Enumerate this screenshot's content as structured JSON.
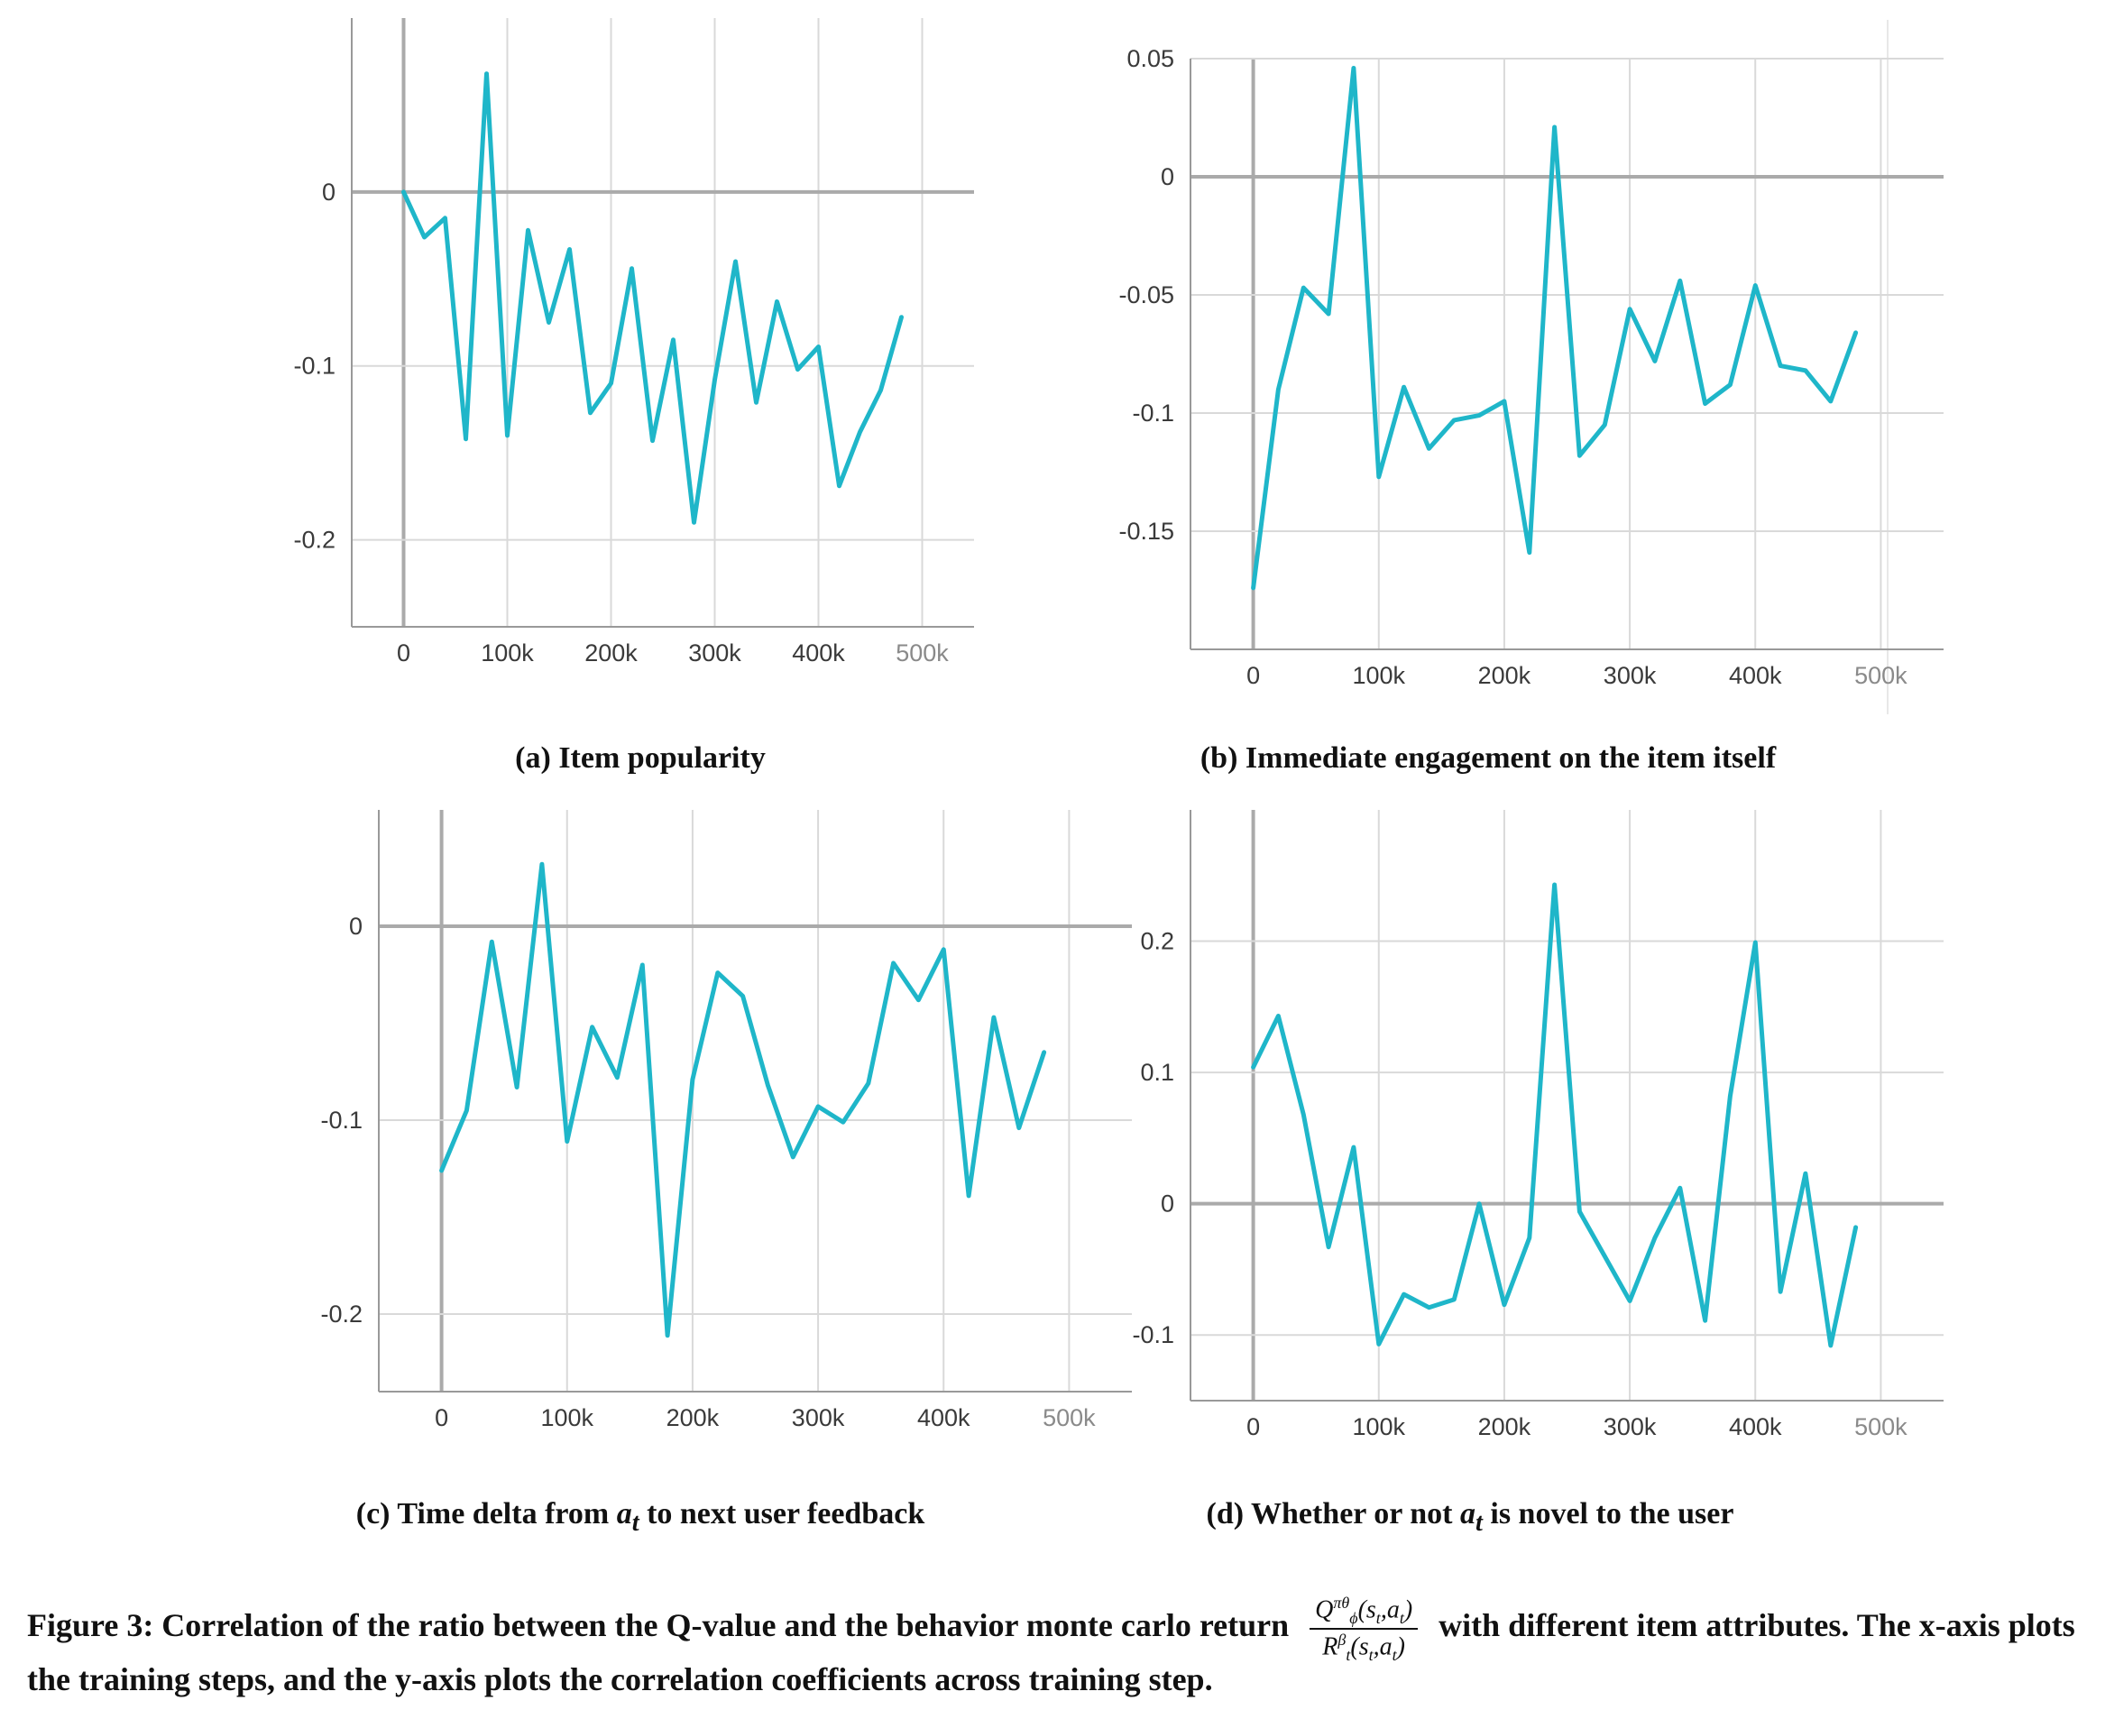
{
  "chart_data": [
    {
      "type": "line",
      "caption": "(a) Item popularity",
      "x": [
        0,
        20000,
        40000,
        60000,
        80000,
        100000,
        120000,
        140000,
        160000,
        180000,
        200000,
        220000,
        240000,
        260000,
        280000,
        300000,
        320000,
        340000,
        360000,
        380000,
        400000,
        420000,
        440000,
        460000,
        480000
      ],
      "values": [
        0,
        -0.026,
        -0.015,
        -0.142,
        0.068,
        -0.14,
        -0.022,
        -0.075,
        -0.033,
        -0.127,
        -0.11,
        -0.044,
        -0.143,
        -0.085,
        -0.19,
        -0.108,
        -0.04,
        -0.121,
        -0.063,
        -0.102,
        -0.089,
        -0.169,
        -0.138,
        -0.114,
        -0.072
      ],
      "xlim": [
        -50000,
        550000
      ],
      "ylim": [
        -0.25,
        0.1
      ],
      "xticks": [
        0,
        100000,
        200000,
        300000,
        400000,
        500000
      ],
      "xtick_labels": [
        "0",
        "100k",
        "200k",
        "300k",
        "400k",
        "500k"
      ],
      "yticks": [
        0,
        -0.1,
        -0.2
      ],
      "ytick_labels": [
        "0",
        "-0.1",
        "-0.2"
      ],
      "grid": true,
      "color": "#1fb6c9"
    },
    {
      "type": "line",
      "caption": "(b) Immediate engagement on the item itself",
      "x": [
        0,
        20000,
        40000,
        60000,
        80000,
        100000,
        120000,
        140000,
        160000,
        180000,
        200000,
        220000,
        240000,
        260000,
        280000,
        300000,
        320000,
        340000,
        360000,
        380000,
        400000,
        420000,
        440000,
        460000,
        480000
      ],
      "values": [
        -0.174,
        -0.09,
        -0.047,
        -0.058,
        0.046,
        -0.127,
        -0.089,
        -0.115,
        -0.103,
        -0.101,
        -0.095,
        -0.159,
        0.021,
        -0.118,
        -0.105,
        -0.056,
        -0.078,
        -0.044,
        -0.096,
        -0.088,
        -0.046,
        -0.08,
        -0.082,
        -0.095,
        -0.066
      ],
      "xlim": [
        -50000,
        550000
      ],
      "ylim": [
        -0.2,
        0.05
      ],
      "xticks": [
        0,
        100000,
        200000,
        300000,
        400000,
        500000
      ],
      "xtick_labels": [
        "0",
        "100k",
        "200k",
        "300k",
        "400k",
        "500k"
      ],
      "yticks": [
        0.05,
        0,
        -0.05,
        -0.1,
        -0.15
      ],
      "ytick_labels": [
        "0.05",
        "0",
        "-0.05",
        "-0.1",
        "-0.15"
      ],
      "grid": true,
      "color": "#1fb6c9"
    },
    {
      "type": "line",
      "caption": "(c) Time delta from",
      "caption_var": "a",
      "caption_sub": "t",
      "caption_rest": "to next user feedback",
      "x": [
        0,
        20000,
        40000,
        60000,
        80000,
        100000,
        120000,
        140000,
        160000,
        180000,
        200000,
        220000,
        240000,
        260000,
        280000,
        300000,
        320000,
        340000,
        360000,
        380000,
        400000,
        420000,
        440000,
        460000,
        480000
      ],
      "values": [
        -0.126,
        -0.095,
        -0.008,
        -0.083,
        0.032,
        -0.111,
        -0.052,
        -0.078,
        -0.02,
        -0.211,
        -0.079,
        -0.024,
        -0.036,
        -0.082,
        -0.119,
        -0.093,
        -0.101,
        -0.081,
        -0.019,
        -0.038,
        -0.012,
        -0.139,
        -0.047,
        -0.104,
        -0.065
      ],
      "xlim": [
        -50000,
        550000
      ],
      "ylim": [
        -0.24,
        0.06
      ],
      "xticks": [
        0,
        100000,
        200000,
        300000,
        400000,
        500000
      ],
      "xtick_labels": [
        "0",
        "100k",
        "200k",
        "300k",
        "400k",
        "500k"
      ],
      "yticks": [
        0,
        -0.1,
        -0.2
      ],
      "ytick_labels": [
        "0",
        "-0.1",
        "-0.2"
      ],
      "grid": true,
      "color": "#1fb6c9"
    },
    {
      "type": "line",
      "caption": "(d) Whether or not",
      "caption_var": "a",
      "caption_sub": "t",
      "caption_rest": "is novel to the user",
      "x": [
        0,
        20000,
        40000,
        60000,
        80000,
        100000,
        120000,
        140000,
        160000,
        180000,
        200000,
        220000,
        240000,
        260000,
        280000,
        300000,
        320000,
        340000,
        360000,
        380000,
        400000,
        420000,
        440000,
        460000,
        480000
      ],
      "values": [
        0.104,
        0.143,
        0.068,
        -0.033,
        0.043,
        -0.107,
        -0.069,
        -0.079,
        -0.073,
        0,
        -0.077,
        -0.026,
        0.243,
        -0.006,
        -0.04,
        -0.074,
        -0.026,
        0.012,
        -0.089,
        0.082,
        0.199,
        -0.067,
        0.023,
        -0.108,
        -0.018
      ],
      "xlim": [
        -50000,
        550000
      ],
      "ylim": [
        -0.15,
        0.3
      ],
      "xticks": [
        0,
        100000,
        200000,
        300000,
        400000,
        500000
      ],
      "xtick_labels": [
        "0",
        "100k",
        "200k",
        "300k",
        "400k",
        "500k"
      ],
      "yticks": [
        0.2,
        0.1,
        0,
        -0.1
      ],
      "ytick_labels": [
        "0.2",
        "0.1",
        "0",
        "-0.1"
      ],
      "grid": true,
      "color": "#1fb6c9"
    }
  ],
  "figure_caption": {
    "part1": "Figure 3: Correlation of the ratio between the Q-value and the behavior monte carlo return",
    "fraction_numerator": "Q",
    "fraction_denominator": "R",
    "part2": "with different item attributes. The x-axis plots the training steps, and the y-axis plots the correlation coefficients across training step."
  }
}
